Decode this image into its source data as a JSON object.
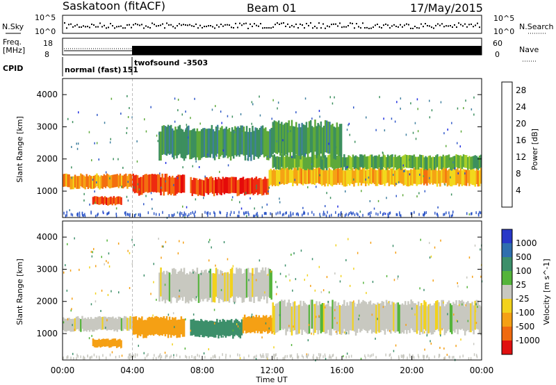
{
  "header": {
    "station": "Saskatoon (fitACF)",
    "beam": "Beam 01",
    "date": "17/May/2015"
  },
  "strips": {
    "noise_sky_label": "N.Sky",
    "noise_search_label": "N.Search",
    "noise_ticks": [
      "10^5",
      "10^0"
    ],
    "noise_ticks_right": [
      "10^5",
      "10^0"
    ],
    "freq_label": "Freq.",
    "freq_unit": "[MHz]",
    "freq_ticks": [
      "18",
      "8"
    ],
    "nave_label": "Nave",
    "nave_ticks": [
      "60",
      "0"
    ],
    "cpid_label": "CPID",
    "cpid_modes": [
      {
        "name": "normal (fast)",
        "id": "151",
        "start_ut": 0.0
      },
      {
        "name": "twofsound",
        "id": "-3503",
        "start_ut": 4.0
      }
    ]
  },
  "chart_data": [
    {
      "type": "heatmap",
      "name": "Power",
      "xlabel": "Time UT",
      "ylabel": "Slant Range [km]",
      "xlim": [
        0,
        24
      ],
      "ylim": [
        180,
        4500
      ],
      "x_ticks": [
        "00:00",
        "04:00",
        "08:00",
        "12:00",
        "16:00",
        "20:00",
        "00:00"
      ],
      "y_ticks": [
        1000,
        2000,
        3000,
        4000
      ],
      "colorbar": {
        "label": "Power [dB]",
        "ticks": [
          4,
          8,
          12,
          16,
          20,
          24,
          28
        ],
        "range": [
          0,
          30
        ],
        "colors": [
          "#1f2de0",
          "#2f57c8",
          "#3f7f9f",
          "#3c8f5e",
          "#5ea93a",
          "#a6cf2a",
          "#f2d81c",
          "#f5a314",
          "#f36f10",
          "#ee2a10",
          "#e50a0a"
        ]
      },
      "bands": [
        {
          "t0": 0.0,
          "t1": 4.0,
          "r_center": 1300,
          "halfwidth": 200,
          "power": 22
        },
        {
          "t0": 1.7,
          "t1": 3.4,
          "r_center": 700,
          "halfwidth": 120,
          "power": 26
        },
        {
          "t0": 4.0,
          "t1": 7.0,
          "r_center": 1200,
          "halfwidth": 280,
          "power": 26
        },
        {
          "t0": 7.3,
          "t1": 11.8,
          "r_center": 1150,
          "halfwidth": 250,
          "power": 27
        },
        {
          "t0": 11.8,
          "t1": 24.0,
          "r_center": 1450,
          "halfwidth": 250,
          "power": 20
        },
        {
          "t0": 12.0,
          "t1": 24.0,
          "r_center": 1900,
          "halfwidth": 200,
          "power": 12
        },
        {
          "t0": 5.5,
          "t1": 12.0,
          "r_center": 2500,
          "halfwidth": 450,
          "power": 9
        },
        {
          "t0": 12.0,
          "t1": 16.0,
          "r_center": 2600,
          "halfwidth": 500,
          "power": 10
        }
      ]
    },
    {
      "type": "heatmap",
      "name": "Velocity",
      "xlabel": "Time UT",
      "ylabel": "Slant Range [km]",
      "xlim": [
        0,
        24
      ],
      "ylim": [
        180,
        4500
      ],
      "x_ticks": [
        "00:00",
        "04:00",
        "08:00",
        "12:00",
        "16:00",
        "20:00",
        "00:00"
      ],
      "y_ticks": [
        1000,
        2000,
        3000,
        4000
      ],
      "colorbar": {
        "label": "Velocity [m s^-1]",
        "ticks": [
          1000,
          500,
          100,
          25,
          -25,
          -100,
          -500,
          -1000
        ],
        "colors": [
          "#2838c8",
          "#2f6fae",
          "#3c8f6a",
          "#54b43a",
          "#c8c8c0",
          "#f2d21c",
          "#f5a014",
          "#f06a10",
          "#e01010"
        ]
      },
      "bands": [
        {
          "t0": 0.0,
          "t1": 4.0,
          "r_center": 1300,
          "halfwidth": 200,
          "velocity": 0
        },
        {
          "t0": 1.7,
          "t1": 3.4,
          "r_center": 700,
          "halfwidth": 120,
          "velocity": -400
        },
        {
          "t0": 4.0,
          "t1": 7.0,
          "r_center": 1200,
          "halfwidth": 280,
          "velocity": -300
        },
        {
          "t0": 7.3,
          "t1": 10.3,
          "r_center": 1150,
          "halfwidth": 250,
          "velocity": 200
        },
        {
          "t0": 10.3,
          "t1": 12.2,
          "r_center": 1300,
          "halfwidth": 250,
          "velocity": -400
        },
        {
          "t0": 12.0,
          "t1": 24.0,
          "r_center": 1500,
          "halfwidth": 450,
          "velocity": 0
        },
        {
          "t0": 5.5,
          "t1": 12.0,
          "r_center": 2500,
          "halfwidth": 450,
          "velocity": 0
        }
      ]
    }
  ]
}
